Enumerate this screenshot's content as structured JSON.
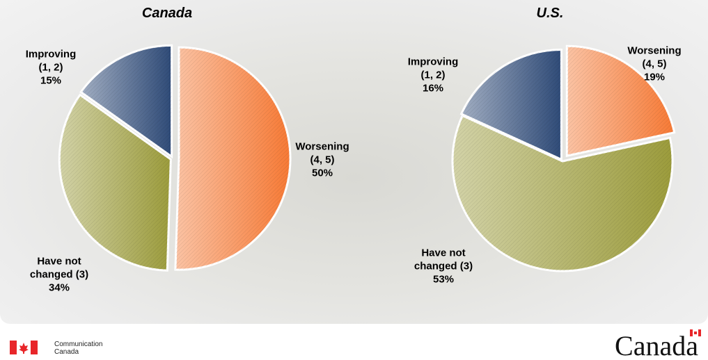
{
  "chart_data": [
    {
      "type": "pie",
      "title": "Canada",
      "categories": [
        "Worsening (4, 5)",
        "Have not changed (3)",
        "Improving (1, 2)"
      ],
      "values": [
        50,
        34,
        15
      ],
      "value_labels": [
        "50%",
        "34%",
        "15%"
      ],
      "colors": [
        "#f77a35",
        "#9c9c3c",
        "#2f4b78"
      ]
    },
    {
      "type": "pie",
      "title": "U.S.",
      "categories": [
        "Worsening (4, 5)",
        "Have not changed (3)",
        "Improving (1, 2)"
      ],
      "values": [
        19,
        53,
        16
      ],
      "value_labels": [
        "19%",
        "53%",
        "16%"
      ],
      "colors": [
        "#f77a35",
        "#9c9c3c",
        "#2f4b78"
      ]
    }
  ],
  "footer": {
    "department": "Communication Canada",
    "wordmark": "Canada"
  }
}
